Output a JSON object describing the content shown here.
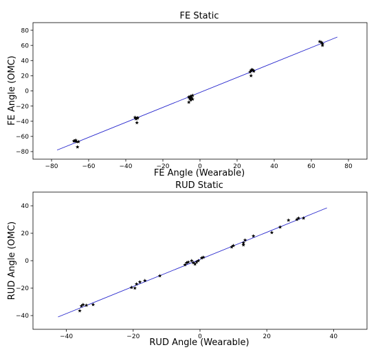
{
  "chart_data": [
    {
      "type": "scatter",
      "title": "FE Static",
      "xlabel": "FE Angle (Wearable)",
      "ylabel": "FE Angle (OMC)",
      "xlim": [
        -90,
        90
      ],
      "ylim": [
        -90,
        90
      ],
      "xticks": [
        -80,
        -60,
        -40,
        -20,
        0,
        20,
        40,
        60,
        80
      ],
      "yticks": [
        -80,
        -60,
        -40,
        -20,
        0,
        20,
        40,
        60,
        80
      ],
      "grid": false,
      "series": [
        {
          "marker": "star",
          "color": "#000000",
          "points": [
            [
              -67,
              -65
            ],
            [
              -68,
              -66
            ],
            [
              -66.5,
              -67
            ],
            [
              -67.5,
              -66
            ],
            [
              -65.5,
              -67
            ],
            [
              -66,
              -74
            ],
            [
              -35,
              -35
            ],
            [
              -34,
              -36
            ],
            [
              -34.5,
              -37
            ],
            [
              -33.5,
              -35.5
            ],
            [
              -34,
              -42
            ],
            [
              -6,
              -8
            ],
            [
              -5,
              -7
            ],
            [
              -4.5,
              -9
            ],
            [
              -5.5,
              -10
            ],
            [
              -4,
              -11
            ],
            [
              -5,
              -12
            ],
            [
              -6,
              -15
            ],
            [
              -4,
              -6
            ],
            [
              27.5,
              27
            ],
            [
              28,
              28
            ],
            [
              29,
              26
            ],
            [
              27,
              25
            ],
            [
              28.5,
              27.5
            ],
            [
              27.5,
              20
            ],
            [
              64.5,
              65
            ],
            [
              65.5,
              64
            ],
            [
              66,
              62
            ],
            [
              66,
              60
            ]
          ]
        },
        {
          "type": "line",
          "color": "#2222cc",
          "points": [
            [
              -77,
              -78
            ],
            [
              74,
              71
            ]
          ]
        }
      ]
    },
    {
      "type": "scatter",
      "title": "RUD Static",
      "xlabel": "RUD Angle (Wearable)",
      "ylabel": "RUD Angle (OMC)",
      "xlim": [
        -50,
        50
      ],
      "ylim": [
        -50,
        50
      ],
      "xticks": [
        -40,
        -20,
        0,
        20,
        40
      ],
      "yticks": [
        -40,
        -20,
        0,
        20,
        40
      ],
      "grid": false,
      "series": [
        {
          "marker": "star",
          "color": "#000000",
          "points": [
            [
              -36,
              -36.5
            ],
            [
              -35.5,
              -33
            ],
            [
              -35,
              -32
            ],
            [
              -34,
              -32.5
            ],
            [
              -32,
              -32
            ],
            [
              -20.5,
              -19.5
            ],
            [
              -19.5,
              -20
            ],
            [
              -19,
              -17
            ],
            [
              -18,
              -15.5
            ],
            [
              -16.5,
              -14.5
            ],
            [
              -12,
              -11
            ],
            [
              -4.5,
              -3
            ],
            [
              -4,
              -1.5
            ],
            [
              -3.5,
              -1
            ],
            [
              -2.5,
              0
            ],
            [
              -2,
              -1.5
            ],
            [
              -1.5,
              -2.5
            ],
            [
              -1,
              -1
            ],
            [
              -0.5,
              0
            ],
            [
              0.5,
              2
            ],
            [
              1,
              2.5
            ],
            [
              9.5,
              10
            ],
            [
              10,
              11
            ],
            [
              13,
              11.5
            ],
            [
              13,
              13
            ],
            [
              13.5,
              15
            ],
            [
              16,
              18
            ],
            [
              21.5,
              20.5
            ],
            [
              24,
              24.5
            ],
            [
              26.5,
              29.5
            ],
            [
              29,
              30
            ],
            [
              29.5,
              31
            ],
            [
              31,
              31
            ]
          ]
        },
        {
          "type": "line",
          "color": "#2222cc",
          "points": [
            [
              -42.5,
              -41
            ],
            [
              38,
              38.5
            ]
          ]
        }
      ]
    }
  ]
}
